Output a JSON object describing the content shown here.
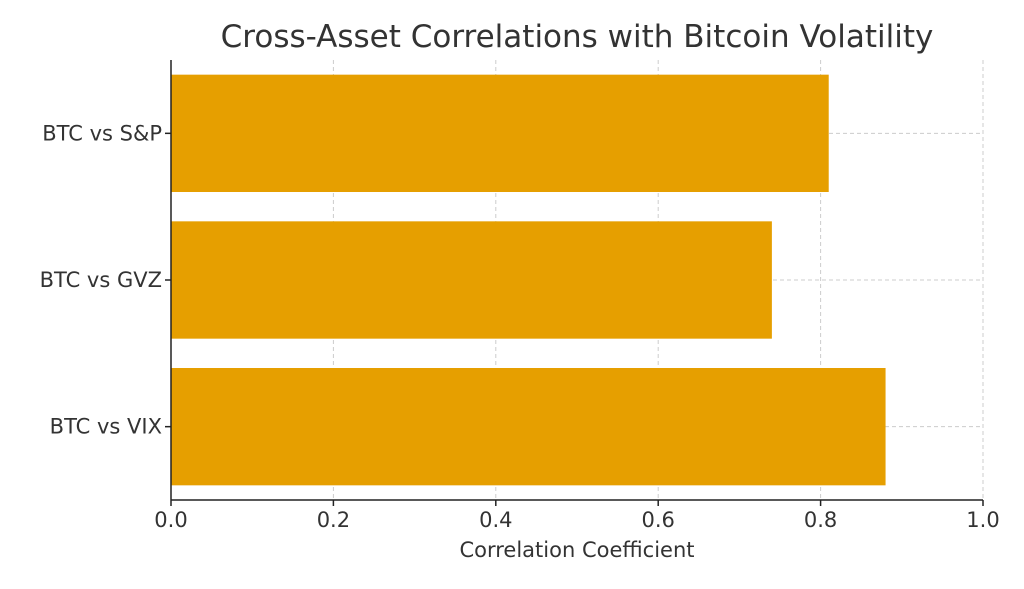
{
  "chart_data": {
    "type": "bar",
    "orientation": "horizontal",
    "title": "Cross-Asset Correlations with Bitcoin Volatility",
    "xlabel": "Correlation Coefficient",
    "ylabel": "",
    "categories": [
      "BTC vs S&P",
      "BTC vs GVZ",
      "BTC vs VIX"
    ],
    "values": [
      0.81,
      0.74,
      0.88
    ],
    "xlim": [
      0.0,
      1.0
    ],
    "xticks": [
      "0.0",
      "0.2",
      "0.4",
      "0.6",
      "0.8",
      "1.0"
    ],
    "grid": true,
    "bar_color": "#E69F00"
  }
}
